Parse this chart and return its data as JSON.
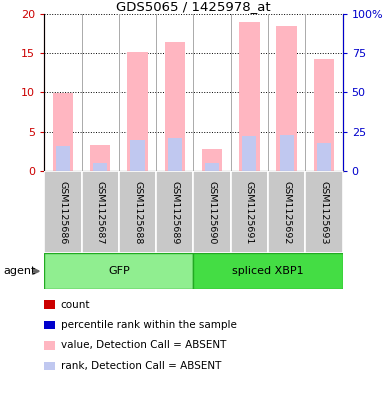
{
  "title": "GDS5065 / 1425978_at",
  "samples": [
    "GSM1125686",
    "GSM1125687",
    "GSM1125688",
    "GSM1125689",
    "GSM1125690",
    "GSM1125691",
    "GSM1125692",
    "GSM1125693"
  ],
  "absent_values": [
    9.9,
    3.3,
    15.1,
    16.4,
    2.8,
    19.0,
    18.5,
    14.3
  ],
  "absent_ranks": [
    3.2,
    1.0,
    4.0,
    4.2,
    1.0,
    4.5,
    4.6,
    3.5
  ],
  "groups": [
    {
      "name": "GFP",
      "start": 0,
      "end": 4,
      "color": "#90EE90",
      "border_color": "#22aa22"
    },
    {
      "name": "spliced XBP1",
      "start": 4,
      "end": 8,
      "color": "#44dd44",
      "border_color": "#22aa22"
    }
  ],
  "ylim_left": [
    0,
    20
  ],
  "ylim_right": [
    0,
    100
  ],
  "yticks_left": [
    0,
    5,
    10,
    15,
    20
  ],
  "yticks_right": [
    0,
    25,
    50,
    75,
    100
  ],
  "yticklabels_right": [
    "0",
    "25",
    "50",
    "75",
    "100%"
  ],
  "absent_bar_color": "#FFB6C1",
  "absent_rank_color": "#c0c8f0",
  "count_color": "#cc0000",
  "rank_color": "#0000cc",
  "bg_color": "#ffffff",
  "label_bg_color": "#c8c8c8",
  "label_separator_color": "#ffffff",
  "grid_color": "black",
  "legend_items": [
    {
      "label": "count",
      "color": "#cc0000"
    },
    {
      "label": "percentile rank within the sample",
      "color": "#0000cc"
    },
    {
      "label": "value, Detection Call = ABSENT",
      "color": "#FFB6C1"
    },
    {
      "label": "rank, Detection Call = ABSENT",
      "color": "#c0c8f0"
    }
  ],
  "agent_label": "agent",
  "figsize": [
    3.85,
    3.93
  ],
  "dpi": 100
}
